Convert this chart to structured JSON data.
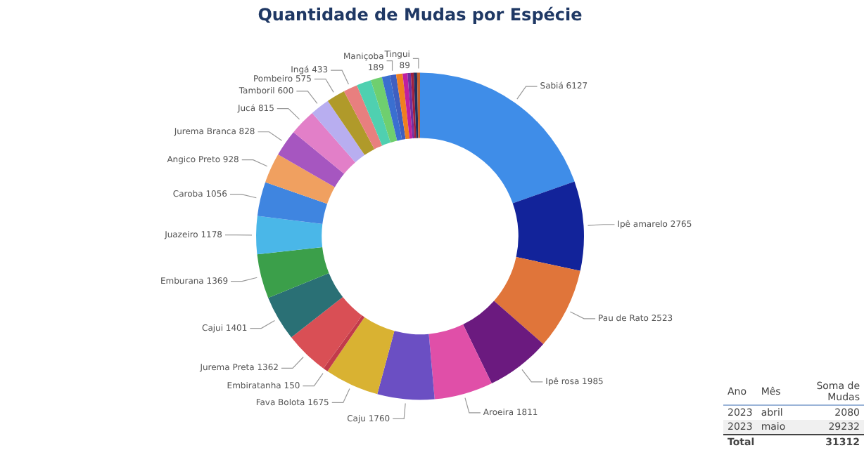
{
  "chart_data": {
    "type": "donut",
    "title": "Quantidade de Mudas por Espécie",
    "categories": [
      "Sabiá",
      "Ipê amarelo",
      "Pau de Rato",
      "Ipê rosa",
      "Aroeira",
      "Caju",
      "Fava Bolota",
      "Embiratanha",
      "Jurema Preta",
      "Cajui",
      "Emburana",
      "Juazeiro",
      "Caroba",
      "Angico Preto",
      "Jurema Branca",
      "Jucá",
      "Tamboril",
      "Pombeiro",
      "Ingá",
      null,
      null,
      null,
      "Maniçoba",
      null,
      null,
      null,
      null,
      null,
      "Tingui"
    ],
    "values": [
      6127,
      2765,
      2523,
      1985,
      1811,
      1760,
      1675,
      150,
      1362,
      1401,
      1369,
      1178,
      1056,
      928,
      828,
      815,
      600,
      575,
      433,
      450,
      350,
      250,
      189,
      200,
      150,
      100,
      90,
      103,
      89
    ],
    "colors": [
      "#3f8de8",
      "#12239a",
      "#e0753a",
      "#6b1a7f",
      "#e04fa8",
      "#6b4fc3",
      "#d9b232",
      "#c23b4a",
      "#d94f55",
      "#2a7075",
      "#3b9f4a",
      "#4ab7e8",
      "#3f85e0",
      "#f0a060",
      "#a656c0",
      "#e27fc8",
      "#b8aef0",
      "#b09a2a",
      "#e87f7f",
      "#4fd0b0",
      "#6fcf6f",
      "#3a6fd0",
      "#3f5fc0",
      "#f07f20",
      "#c020a0",
      "#7030a0",
      "#a02040",
      "#203060",
      "#c06030"
    ],
    "value_labels": [
      "6127",
      "2765",
      "2523",
      "1985",
      "1811",
      "1760",
      "1675",
      "150",
      "1362",
      "1401",
      "1369",
      "1178",
      "1056",
      "928",
      "828",
      "815",
      "600",
      "575",
      "433",
      null,
      null,
      null,
      "189",
      null,
      null,
      null,
      null,
      null,
      "89"
    ],
    "legend": false,
    "annotations": [
      "Ano",
      "Mês",
      "Soma de Mudas",
      "2023",
      "abril",
      "2080",
      "2023",
      "maio",
      "29232",
      "Total",
      "31312"
    ]
  }
}
